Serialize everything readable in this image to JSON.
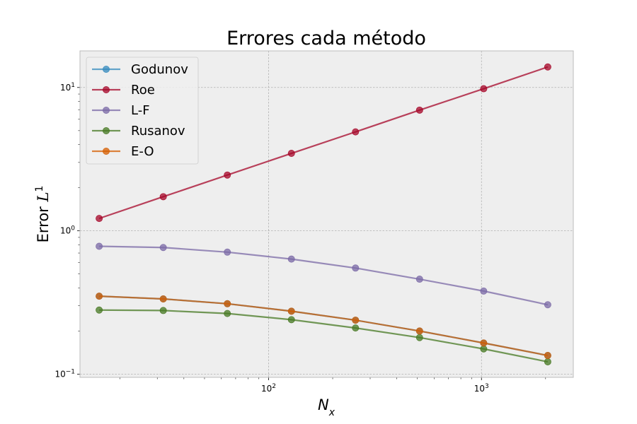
{
  "chart_data": {
    "type": "line",
    "title": "Errores cada método",
    "xlabel": "N_x",
    "ylabel": "Error L^1",
    "xscale": "log",
    "yscale": "log",
    "xlim": [
      13,
      2700
    ],
    "ylim": [
      0.095,
      18
    ],
    "x": [
      16,
      32,
      64,
      128,
      256,
      512,
      1024,
      2048
    ],
    "x_ticks": [
      {
        "base": "10",
        "exp": "2",
        "value": 100
      },
      {
        "base": "10",
        "exp": "3",
        "value": 1000
      }
    ],
    "y_ticks": [
      {
        "base": "10",
        "exp": "−1",
        "value": 0.1
      },
      {
        "base": "10",
        "exp": "0",
        "value": 1
      },
      {
        "base": "10",
        "exp": "1",
        "value": 10
      }
    ],
    "grid": true,
    "legend_position": "top-left",
    "series": [
      {
        "name": "Godunov",
        "color": "#348ABD",
        "values": [
          0.35,
          0.335,
          0.31,
          0.275,
          0.238,
          0.2,
          0.165,
          0.135
        ]
      },
      {
        "name": "Roe",
        "color": "#A60628",
        "values": [
          1.22,
          1.73,
          2.45,
          3.47,
          4.9,
          6.95,
          9.8,
          13.9
        ]
      },
      {
        "name": "L-F",
        "color": "#7A68A6",
        "values": [
          0.78,
          0.765,
          0.71,
          0.635,
          0.55,
          0.46,
          0.38,
          0.305
        ]
      },
      {
        "name": "Rusanov",
        "color": "#467821",
        "values": [
          0.28,
          0.278,
          0.265,
          0.24,
          0.21,
          0.18,
          0.15,
          0.122
        ]
      },
      {
        "name": "E-O",
        "color": "#D55E00",
        "values": [
          0.35,
          0.335,
          0.31,
          0.275,
          0.238,
          0.2,
          0.165,
          0.135
        ]
      }
    ]
  }
}
